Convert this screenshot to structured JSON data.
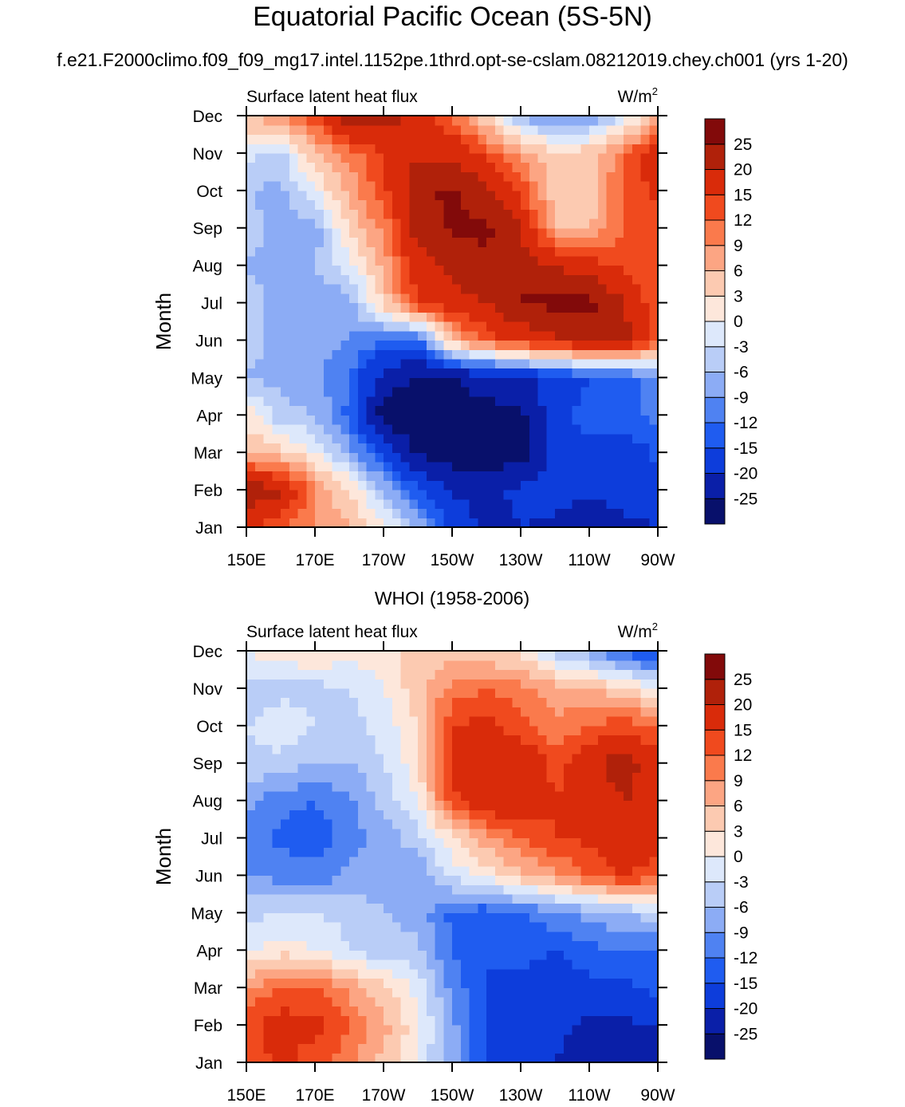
{
  "title": "Equatorial Pacific Ocean (5S-5N)",
  "subtitle": "f.e21.F2000climo.f09_f09_mg17.intel.1152pe.1thrd.opt-se-cslam.08212019.chey.ch001 (yrs 1-20)",
  "chart_data": [
    {
      "type": "heatmap",
      "name": "model",
      "panel_title": "",
      "left_label": "Surface latent heat flux",
      "units": "W/m",
      "units_sup": "2",
      "ylabel": "Month",
      "x_ticks": [
        "150E",
        "170E",
        "170W",
        "150W",
        "130W",
        "110W",
        "90W"
      ],
      "y_ticks": [
        "Jan",
        "Feb",
        "Mar",
        "Apr",
        "May",
        "Jun",
        "Jul",
        "Aug",
        "Sep",
        "Oct",
        "Nov",
        "Dec"
      ],
      "levels": [
        -25,
        -20,
        -15,
        -12,
        -9,
        -6,
        -3,
        0,
        3,
        6,
        9,
        12,
        15,
        20,
        25
      ],
      "level_labels": [
        "-25",
        "-20",
        "-15",
        "-12",
        "-9",
        "-6",
        "-3",
        "0",
        "3",
        "6",
        "9",
        "12",
        "15",
        "20",
        "25"
      ],
      "colors": [
        "#08106b",
        "#0a1fa8",
        "#0d3ddb",
        "#1f5cf0",
        "#4f82f2",
        "#8cacf5",
        "#b9cdf7",
        "#dde8fb",
        "#fde7db",
        "#fccab1",
        "#fca583",
        "#fa7a4c",
        "#f04a1e",
        "#d92b0a",
        "#b0210a",
        "#820a0a"
      ],
      "grid_lon": [
        "150E",
        "160E",
        "170E",
        "180",
        "170W",
        "160W",
        "150W",
        "140W",
        "130W",
        "120W",
        "110W",
        "100W",
        "90W"
      ],
      "grid_month": [
        "Jan",
        "Feb",
        "Mar",
        "Apr",
        "May",
        "Jun",
        "Jul",
        "Aug",
        "Sep",
        "Oct",
        "Nov",
        "Dec"
      ],
      "values": [
        [
          16,
          12,
          9,
          6,
          1,
          -6,
          -16,
          -22,
          -20,
          -21,
          -24,
          -22,
          -20
        ],
        [
          23,
          21,
          9,
          3,
          -6,
          -14,
          -21,
          -21,
          -19,
          -18,
          -19,
          -17,
          -16
        ],
        [
          6,
          4,
          0,
          -7,
          -17,
          -26,
          -28,
          -28,
          -28,
          -18,
          -17,
          -18,
          -14
        ],
        [
          2,
          -5,
          -6,
          -13,
          -28,
          -28,
          -27,
          -27,
          -26,
          -17,
          -13,
          -13,
          -11
        ],
        [
          -6,
          -7,
          -8,
          -12,
          -22,
          -26,
          -25,
          -23,
          -21,
          -18,
          -15,
          -14,
          -10
        ],
        [
          -5,
          -7,
          -8,
          -9,
          -12,
          -13,
          6,
          13,
          16,
          19,
          20,
          22,
          12
        ],
        [
          -4,
          -8,
          -8,
          -8,
          4,
          15,
          18,
          20,
          26,
          26,
          27,
          20,
          12
        ],
        [
          -6,
          -8,
          -6,
          -1,
          7,
          18,
          21,
          24,
          22,
          20,
          17,
          14,
          12
        ],
        [
          -4,
          -8,
          -8,
          4,
          10,
          22,
          26,
          26,
          20,
          6,
          6,
          12,
          12
        ],
        [
          -6,
          -7,
          0,
          7,
          14,
          24,
          26,
          21,
          14,
          4,
          3,
          13,
          16
        ],
        [
          -2,
          -4,
          6,
          10,
          15,
          19,
          18,
          14,
          8,
          4,
          5,
          11,
          18
        ],
        [
          6,
          9,
          14,
          23,
          22,
          18,
          12,
          3,
          -6,
          -11,
          -9,
          -3,
          8
        ]
      ]
    },
    {
      "type": "heatmap",
      "name": "observed",
      "panel_title": "WHOI (1958-2006)",
      "left_label": "Surface latent heat flux",
      "units": "W/m",
      "units_sup": "2",
      "ylabel": "Month",
      "x_ticks": [
        "150E",
        "170E",
        "170W",
        "150W",
        "130W",
        "110W",
        "90W"
      ],
      "y_ticks": [
        "Jan",
        "Feb",
        "Mar",
        "Apr",
        "May",
        "Jun",
        "Jul",
        "Aug",
        "Sep",
        "Oct",
        "Nov",
        "Dec"
      ],
      "levels": [
        -25,
        -20,
        -15,
        -12,
        -9,
        -6,
        -3,
        0,
        3,
        6,
        9,
        12,
        15,
        20,
        25
      ],
      "level_labels": [
        "-25",
        "-20",
        "-15",
        "-12",
        "-9",
        "-6",
        "-3",
        "0",
        "3",
        "6",
        "9",
        "12",
        "15",
        "20",
        "25"
      ],
      "colors": [
        "#08106b",
        "#0a1fa8",
        "#0d3ddb",
        "#1f5cf0",
        "#4f82f2",
        "#8cacf5",
        "#b9cdf7",
        "#dde8fb",
        "#fde7db",
        "#fccab1",
        "#fca583",
        "#fa7a4c",
        "#f04a1e",
        "#d92b0a",
        "#b0210a",
        "#820a0a"
      ],
      "grid_lon": [
        "150E",
        "160E",
        "170E",
        "180",
        "170W",
        "160W",
        "150W",
        "140W",
        "130W",
        "120W",
        "110W",
        "100W",
        "90W"
      ],
      "grid_month": [
        "Jan",
        "Feb",
        "Mar",
        "Apr",
        "May",
        "Jun",
        "Jul",
        "Aug",
        "Sep",
        "Oct",
        "Nov",
        "Dec"
      ],
      "values": [
        [
          12,
          16,
          13,
          10,
          5,
          -1,
          -8,
          -16,
          -19,
          -20,
          -22,
          -22,
          -22
        ],
        [
          14,
          17,
          16,
          12,
          7,
          1,
          -8,
          -16,
          -18,
          -19,
          -21,
          -21,
          -20
        ],
        [
          9,
          12,
          12,
          8,
          4,
          -1,
          -10,
          -15,
          -16,
          -17,
          -16,
          -16,
          -14
        ],
        [
          -1,
          2,
          0,
          -3,
          -5,
          -5,
          -12,
          -15,
          -14,
          -15,
          -13,
          -12,
          -12
        ],
        [
          -4,
          -3,
          -3,
          -4,
          -6,
          -7,
          -13,
          -14,
          -12,
          -10,
          -8,
          -6,
          -4
        ],
        [
          -9,
          -10,
          -11,
          -8,
          -7,
          -9,
          -2,
          1,
          5,
          8,
          12,
          15,
          14
        ],
        [
          -11,
          -13,
          -14,
          -10,
          -8,
          -4,
          2,
          8,
          12,
          15,
          16,
          18,
          16
        ],
        [
          -8,
          -11,
          -12,
          -10,
          -5,
          0,
          14,
          18,
          19,
          15,
          17,
          20,
          18
        ],
        [
          -4,
          -4,
          -6,
          -6,
          -3,
          2,
          16,
          18,
          19,
          14,
          18,
          23,
          16
        ],
        [
          -3,
          -1,
          -3,
          -4,
          -2,
          3,
          15,
          16,
          13,
          10,
          12,
          14,
          12
        ],
        [
          -5,
          -4,
          -4,
          -3,
          0,
          5,
          10,
          12,
          10,
          7,
          6,
          4,
          0
        ],
        [
          0,
          2,
          3,
          1,
          2,
          4,
          4,
          3,
          2,
          -4,
          -8,
          -13,
          -17
        ]
      ]
    }
  ]
}
